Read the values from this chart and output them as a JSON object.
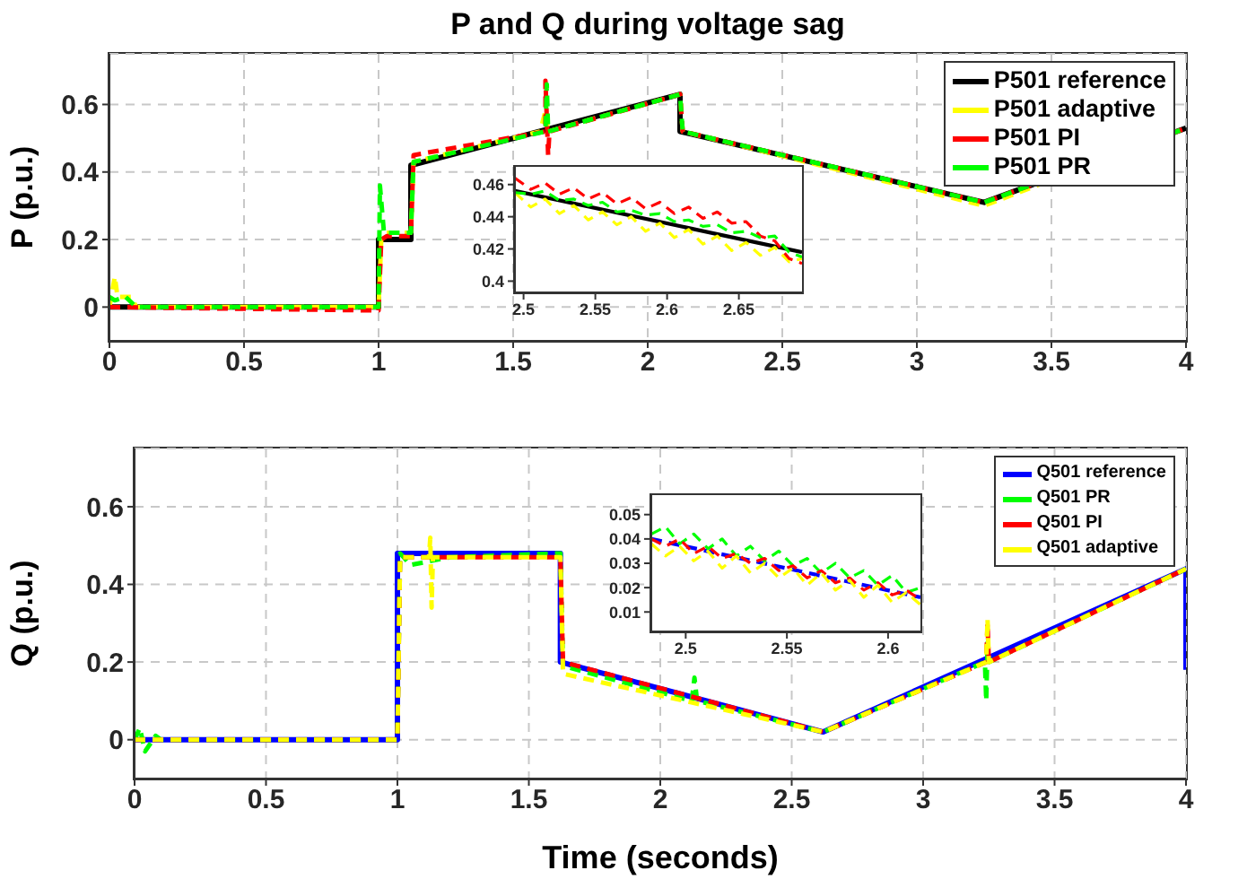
{
  "chart_data": [
    {
      "type": "line",
      "title": "P and Q during voltage sag",
      "ylabel": "P (p.u.)",
      "xlim": [
        0,
        4
      ],
      "xticks": [
        0,
        0.5,
        1,
        1.5,
        2,
        2.5,
        3,
        3.5,
        4
      ],
      "ylim": [
        -0.1,
        0.75
      ],
      "yticks": [
        0,
        0.2,
        0.4,
        0.6
      ],
      "grid": true,
      "legend": "top right",
      "marker": "none",
      "series": [
        {
          "name": "P501 reference",
          "color": "#000000",
          "line_style": "solid",
          "x": [
            0,
            1,
            1,
            1.12,
            1.12,
            2.12,
            2.12,
            3.25,
            4
          ],
          "values": [
            0,
            0,
            0.2,
            0.2,
            0.42,
            0.63,
            0.52,
            0.31,
            0.53
          ]
        },
        {
          "name": "P501 adaptive",
          "color": "#ffff00",
          "line_style": "dashed",
          "x": [
            0,
            0.02,
            0.03,
            0.08,
            0.1,
            1,
            1.01,
            1.03,
            1.12,
            1.13,
            1.6,
            1.62,
            1.63,
            2.12,
            2.13,
            3.25,
            4
          ],
          "values": [
            0,
            0.09,
            0.03,
            0.03,
            0,
            0,
            0.2,
            0.22,
            0.22,
            0.43,
            0.52,
            0.58,
            0.52,
            0.63,
            0.52,
            0.3,
            0.53
          ]
        },
        {
          "name": "P501 PI",
          "color": "#ff0000",
          "line_style": "dashed",
          "x": [
            0,
            0.97,
            1,
            1.01,
            1.03,
            1.12,
            1.13,
            1.62,
            1.62,
            1.63,
            1.635,
            2.12,
            2.13,
            3.25,
            4
          ],
          "values": [
            0,
            -0.01,
            -0.01,
            0.2,
            0.21,
            0.21,
            0.45,
            0.52,
            0.67,
            0.45,
            0.52,
            0.63,
            0.52,
            0.31,
            0.53
          ]
        },
        {
          "name": "P501 PR",
          "color": "#00ff00",
          "line_style": "dashed",
          "x": [
            0,
            0.02,
            0.06,
            0.1,
            1,
            1.005,
            1.02,
            1.03,
            1.12,
            1.13,
            1.62,
            1.625,
            1.63,
            2.12,
            2.13,
            3.25,
            4
          ],
          "values": [
            0.03,
            0.02,
            0.03,
            0,
            0,
            0.36,
            0.22,
            0.22,
            0.22,
            0.43,
            0.52,
            0.66,
            0.52,
            0.63,
            0.52,
            0.31,
            0.53
          ]
        }
      ]
    },
    {
      "type": "line",
      "xlim": [
        2.494,
        2.694
      ],
      "xticks": [
        {
          "value": 2.5,
          "label": "2.5"
        },
        {
          "value": 2.55,
          "label": "2.55"
        },
        {
          "value": 2.6,
          "label": "2.6"
        },
        {
          "value": 2.65,
          "label": "2.65"
        }
      ],
      "ylim": [
        0.393,
        0.471
      ],
      "yticks": [
        0.4,
        0.42,
        0.44,
        0.46
      ],
      "grid": false,
      "marker": "none",
      "series": [
        {
          "color": "#000000",
          "line_style": "solid",
          "x": [
            2.494,
            2.694
          ],
          "values": [
            0.456,
            0.418
          ]
        },
        {
          "color": "#ffff00",
          "line_style": "dashed",
          "x": [
            2.494,
            2.505,
            2.515,
            2.525,
            2.535,
            2.545,
            2.555,
            2.565,
            2.575,
            2.585,
            2.595,
            2.605,
            2.615,
            2.625,
            2.635,
            2.645,
            2.655,
            2.665,
            2.675,
            2.685,
            2.694
          ],
          "values": [
            0.455,
            0.446,
            0.451,
            0.442,
            0.447,
            0.438,
            0.443,
            0.435,
            0.44,
            0.431,
            0.436,
            0.427,
            0.432,
            0.423,
            0.428,
            0.419,
            0.424,
            0.416,
            0.421,
            0.412,
            0.414
          ]
        },
        {
          "color": "#ff0000",
          "line_style": "dashed",
          "x": [
            2.494,
            2.505,
            2.515,
            2.525,
            2.535,
            2.545,
            2.555,
            2.565,
            2.575,
            2.585,
            2.595,
            2.605,
            2.615,
            2.625,
            2.635,
            2.645,
            2.655,
            2.665,
            2.675,
            2.685,
            2.694
          ],
          "values": [
            0.464,
            0.457,
            0.461,
            0.454,
            0.458,
            0.451,
            0.455,
            0.448,
            0.452,
            0.445,
            0.449,
            0.442,
            0.446,
            0.439,
            0.443,
            0.436,
            0.437,
            0.428,
            0.425,
            0.414,
            0.411
          ]
        },
        {
          "color": "#00ff00",
          "line_style": "dashed",
          "x": [
            2.494,
            2.505,
            2.515,
            2.525,
            2.535,
            2.545,
            2.555,
            2.565,
            2.575,
            2.585,
            2.595,
            2.605,
            2.615,
            2.625,
            2.635,
            2.645,
            2.655,
            2.665,
            2.675,
            2.685,
            2.694
          ],
          "values": [
            0.455,
            0.454,
            0.456,
            0.45,
            0.451,
            0.447,
            0.449,
            0.443,
            0.444,
            0.441,
            0.442,
            0.437,
            0.438,
            0.434,
            0.435,
            0.43,
            0.431,
            0.427,
            0.428,
            0.418,
            0.415
          ]
        }
      ]
    },
    {
      "type": "line",
      "xlabel": "Time (seconds)",
      "ylabel": "Q (p.u.)",
      "xlim": [
        0,
        4
      ],
      "xticks": [
        0,
        0.5,
        1,
        1.5,
        2,
        2.5,
        3,
        3.5,
        4
      ],
      "ylim": [
        -0.1,
        0.75
      ],
      "yticks": [
        0,
        0.2,
        0.4,
        0.6
      ],
      "grid": true,
      "legend": "top right",
      "marker": "none",
      "series": [
        {
          "name": "Q501 reference",
          "color": "#0000ff",
          "line_style": "solid",
          "x": [
            0,
            1,
            1,
            1.62,
            1.62,
            2.62,
            4,
            4
          ],
          "values": [
            0,
            0,
            0.48,
            0.48,
            0.2,
            0.02,
            0.44,
            0.18
          ]
        },
        {
          "name": "Q501 PR",
          "color": "#00ff00",
          "line_style": "dashed",
          "x": [
            0,
            0.02,
            0.04,
            0.08,
            0.1,
            1,
            1.01,
            1.05,
            1.2,
            1.62,
            1.63,
            2.12,
            2.13,
            2.14,
            2.62,
            3.235,
            3.24,
            3.245,
            3.25,
            4
          ],
          "values": [
            0,
            0.03,
            -0.03,
            0.01,
            0,
            0,
            0.48,
            0.45,
            0.47,
            0.48,
            0.19,
            0.1,
            0.16,
            0.1,
            0.02,
            0.2,
            0.1,
            0.25,
            0.2,
            0.44
          ]
        },
        {
          "name": "Q501 PI",
          "color": "#ff0000",
          "line_style": "dashed",
          "x": [
            0,
            1,
            1.01,
            1.62,
            1.63,
            2.62,
            3.24,
            3.245,
            3.25,
            4
          ],
          "values": [
            0,
            0,
            0.47,
            0.47,
            0.2,
            0.02,
            0.2,
            0.3,
            0.2,
            0.44
          ]
        },
        {
          "name": "Q501 adaptive",
          "color": "#ffff00",
          "line_style": "dashed",
          "x": [
            0,
            1,
            1.01,
            1.12,
            1.125,
            1.13,
            1.135,
            1.62,
            1.63,
            2.62,
            3.24,
            3.245,
            3.25,
            4
          ],
          "values": [
            0,
            0,
            0.47,
            0.47,
            0.52,
            0.34,
            0.47,
            0.47,
            0.17,
            0.02,
            0.2,
            0.31,
            0.2,
            0.44
          ]
        }
      ]
    },
    {
      "type": "line",
      "xlim": [
        2.483,
        2.616
      ],
      "xticks": [
        2.5,
        2.55,
        2.6
      ],
      "ylim": [
        0.002,
        0.058
      ],
      "yticks": [
        0.01,
        0.02,
        0.03,
        0.04,
        0.05
      ],
      "grid": false,
      "marker": "none",
      "series": [
        {
          "color": "#0000ff",
          "line_style": "dashed",
          "x": [
            2.483,
            2.616
          ],
          "values": [
            0.04,
            0.016
          ]
        },
        {
          "color": "#00ff00",
          "line_style": "dashed",
          "x": [
            2.483,
            2.49,
            2.497,
            2.504,
            2.511,
            2.518,
            2.525,
            2.532,
            2.539,
            2.546,
            2.553,
            2.56,
            2.567,
            2.574,
            2.581,
            2.588,
            2.595,
            2.602,
            2.609,
            2.616
          ],
          "values": [
            0.042,
            0.045,
            0.038,
            0.042,
            0.036,
            0.04,
            0.033,
            0.037,
            0.031,
            0.035,
            0.029,
            0.032,
            0.026,
            0.03,
            0.024,
            0.027,
            0.021,
            0.025,
            0.018,
            0.02
          ]
        },
        {
          "color": "#ff0000",
          "line_style": "dashed",
          "x": [
            2.483,
            2.49,
            2.497,
            2.504,
            2.511,
            2.518,
            2.525,
            2.532,
            2.539,
            2.546,
            2.553,
            2.56,
            2.567,
            2.574,
            2.581,
            2.588,
            2.595,
            2.602,
            2.609,
            2.616
          ],
          "values": [
            0.04,
            0.037,
            0.04,
            0.034,
            0.037,
            0.032,
            0.034,
            0.03,
            0.032,
            0.027,
            0.029,
            0.024,
            0.027,
            0.022,
            0.024,
            0.019,
            0.022,
            0.017,
            0.019,
            0.015
          ]
        },
        {
          "color": "#ffff00",
          "line_style": "dashed",
          "x": [
            2.483,
            2.49,
            2.497,
            2.504,
            2.511,
            2.518,
            2.525,
            2.532,
            2.539,
            2.546,
            2.553,
            2.56,
            2.567,
            2.574,
            2.581,
            2.588,
            2.595,
            2.602,
            2.609,
            2.616
          ],
          "values": [
            0.038,
            0.033,
            0.037,
            0.031,
            0.035,
            0.028,
            0.033,
            0.026,
            0.03,
            0.024,
            0.028,
            0.021,
            0.026,
            0.019,
            0.023,
            0.016,
            0.021,
            0.014,
            0.018,
            0.013
          ]
        }
      ]
    }
  ]
}
